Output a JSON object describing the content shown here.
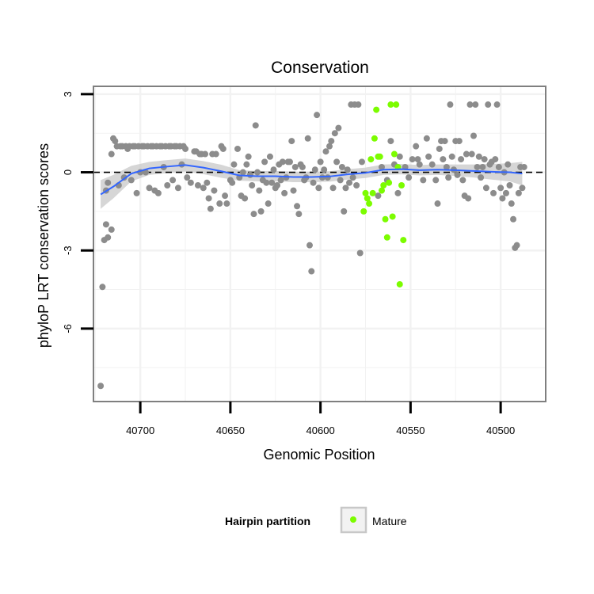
{
  "chart_data": {
    "type": "scatter",
    "title": "Conservation",
    "xlabel": "Genomic Position",
    "ylabel": "phyloP LRT conservation scores",
    "x_reversed": true,
    "xlim": [
      40726,
      40475
    ],
    "ylim": [
      -8.8,
      3.3
    ],
    "x_ticks": [
      40700,
      40650,
      40600,
      40550,
      40500
    ],
    "y_ticks": [
      3,
      0,
      -3,
      -6
    ],
    "reference_line": {
      "y": 0,
      "style": "dashed"
    },
    "grid": true,
    "legend": {
      "title": "Hairpin partition",
      "entries": [
        "Mature"
      ],
      "placement": "bottom"
    },
    "colors": {
      "other": "#8c8c8c",
      "mature": "#7cfc00",
      "smooth": "#3366ff",
      "band": "#c8c8c8",
      "panel_border": "#7f7f7f",
      "grid": "#f2f2f2"
    },
    "series": [
      {
        "name": "",
        "color": "#8c8c8c",
        "points": [
          [
            40722,
            -8.2
          ],
          [
            40721,
            -4.4
          ],
          [
            40720,
            -2.6
          ],
          [
            40719,
            -2.0
          ],
          [
            40718,
            -2.5
          ],
          [
            40716,
            -2.2
          ],
          [
            40719,
            -0.7
          ],
          [
            40718,
            -0.4
          ],
          [
            40716,
            0.7
          ],
          [
            40715,
            1.3
          ],
          [
            40714,
            1.2
          ],
          [
            40713,
            1.0
          ],
          [
            40712,
            -0.5
          ],
          [
            40711,
            1.0
          ],
          [
            40710,
            1.0
          ],
          [
            40709,
            -0.2
          ],
          [
            40708,
            1.0
          ],
          [
            40707,
            0.9
          ],
          [
            40706,
            1.0
          ],
          [
            40705,
            -0.3
          ],
          [
            40704,
            1.0
          ],
          [
            40703,
            1.0
          ],
          [
            40702,
            -0.8
          ],
          [
            40701,
            1.0
          ],
          [
            40700,
            0.0
          ],
          [
            40699,
            1.0
          ],
          [
            40698,
            1.0
          ],
          [
            40697,
            0.0
          ],
          [
            40696,
            1.0
          ],
          [
            40695,
            -0.6
          ],
          [
            40694,
            1.0
          ],
          [
            40693,
            1.0
          ],
          [
            40692,
            -0.7
          ],
          [
            40691,
            1.0
          ],
          [
            40690,
            -0.8
          ],
          [
            40689,
            1.0
          ],
          [
            40688,
            1.0
          ],
          [
            40687,
            0.2
          ],
          [
            40686,
            1.0
          ],
          [
            40685,
            -0.5
          ],
          [
            40684,
            1.0
          ],
          [
            40683,
            1.0
          ],
          [
            40682,
            -0.3
          ],
          [
            40681,
            1.0
          ],
          [
            40680,
            1.0
          ],
          [
            40679,
            -0.6
          ],
          [
            40678,
            1.0
          ],
          [
            40677,
            0.3
          ],
          [
            40676,
            1.0
          ],
          [
            40675,
            0.9
          ],
          [
            40674,
            -0.2
          ],
          [
            40672,
            -0.4
          ],
          [
            40670,
            0.8
          ],
          [
            40669,
            0.8
          ],
          [
            40668,
            -0.5
          ],
          [
            40667,
            0.7
          ],
          [
            40666,
            0.7
          ],
          [
            40665,
            -0.6
          ],
          [
            40664,
            0.7
          ],
          [
            40663,
            -0.4
          ],
          [
            40662,
            -1.0
          ],
          [
            40661,
            -1.4
          ],
          [
            40660,
            0.7
          ],
          [
            40659,
            -0.7
          ],
          [
            40658,
            0.7
          ],
          [
            40656,
            -1.2
          ],
          [
            40655,
            1.0
          ],
          [
            40654,
            0.9
          ],
          [
            40653,
            -0.9
          ],
          [
            40652,
            -1.2
          ],
          [
            40650,
            -0.3
          ],
          [
            40649,
            -0.4
          ],
          [
            40648,
            0.3
          ],
          [
            40646,
            0.9
          ],
          [
            40645,
            -0.2
          ],
          [
            40644,
            -0.9
          ],
          [
            40643,
            0.0
          ],
          [
            40642,
            -1.0
          ],
          [
            40641,
            0.3
          ],
          [
            40640,
            0.6
          ],
          [
            40639,
            -0.1
          ],
          [
            40638,
            -0.5
          ],
          [
            40637,
            -1.6
          ],
          [
            40636,
            1.8
          ],
          [
            40635,
            0.0
          ],
          [
            40634,
            -0.7
          ],
          [
            40633,
            -1.5
          ],
          [
            40632,
            -0.3
          ],
          [
            40631,
            0.4
          ],
          [
            40630,
            -0.4
          ],
          [
            40629,
            -1.2
          ],
          [
            40628,
            0.6
          ],
          [
            40627,
            -0.4
          ],
          [
            40626,
            0.1
          ],
          [
            40625,
            -0.6
          ],
          [
            40624,
            -0.5
          ],
          [
            40623,
            0.3
          ],
          [
            40622,
            -0.3
          ],
          [
            40621,
            0.4
          ],
          [
            40620,
            -0.8
          ],
          [
            40619,
            -0.2
          ],
          [
            40618,
            0.4
          ],
          [
            40617,
            0.4
          ],
          [
            40616,
            1.2
          ],
          [
            40615,
            -0.7
          ],
          [
            40614,
            0.2
          ],
          [
            40613,
            -1.3
          ],
          [
            40612,
            -1.6
          ],
          [
            40611,
            0.3
          ],
          [
            40610,
            0.2
          ],
          [
            40609,
            -0.3
          ],
          [
            40608,
            -0.2
          ],
          [
            40607,
            1.3
          ],
          [
            40606,
            -2.8
          ],
          [
            40605,
            -3.8
          ],
          [
            40604,
            -0.4
          ],
          [
            40603,
            0.1
          ],
          [
            40602,
            2.2
          ],
          [
            40601,
            -0.6
          ],
          [
            40600,
            0.4
          ],
          [
            40599,
            -0.2
          ],
          [
            40598,
            0.1
          ],
          [
            40597,
            0.8
          ],
          [
            40596,
            -0.2
          ],
          [
            40595,
            1.0
          ],
          [
            40594,
            1.2
          ],
          [
            40593,
            -0.6
          ],
          [
            40592,
            1.5
          ],
          [
            40591,
            0.4
          ],
          [
            40590,
            1.7
          ],
          [
            40589,
            -0.3
          ],
          [
            40588,
            0.2
          ],
          [
            40587,
            -1.5
          ],
          [
            40586,
            -0.6
          ],
          [
            40585,
            0.1
          ],
          [
            40584,
            -0.4
          ],
          [
            40583,
            2.6
          ],
          [
            40582,
            -0.2
          ],
          [
            40581,
            2.6
          ],
          [
            40580,
            -0.5
          ],
          [
            40579,
            2.6
          ],
          [
            40578,
            -3.1
          ],
          [
            40577,
            0.4
          ],
          [
            40568,
            -0.9
          ],
          [
            40566,
            0.2
          ],
          [
            40563,
            -0.3
          ],
          [
            40561,
            1.2
          ],
          [
            40559,
            0.3
          ],
          [
            40557,
            -0.8
          ],
          [
            40556,
            0.6
          ],
          [
            40553,
            0.2
          ],
          [
            40551,
            -0.2
          ],
          [
            40549,
            0.5
          ],
          [
            40547,
            1.0
          ],
          [
            40546,
            0.5
          ],
          [
            40545,
            0.3
          ],
          [
            40543,
            -0.3
          ],
          [
            40541,
            1.3
          ],
          [
            40540,
            0.6
          ],
          [
            40538,
            0.3
          ],
          [
            40536,
            -0.3
          ],
          [
            40535,
            -1.2
          ],
          [
            40534,
            0.9
          ],
          [
            40533,
            1.2
          ],
          [
            40532,
            0.5
          ],
          [
            40531,
            1.2
          ],
          [
            40530,
            0.2
          ],
          [
            40529,
            -0.2
          ],
          [
            40528,
            2.6
          ],
          [
            40527,
            0.6
          ],
          [
            40526,
            0.1
          ],
          [
            40525,
            1.2
          ],
          [
            40524,
            -0.1
          ],
          [
            40523,
            1.2
          ],
          [
            40522,
            0.5
          ],
          [
            40521,
            -0.3
          ],
          [
            40520,
            -0.9
          ],
          [
            40519,
            0.7
          ],
          [
            40518,
            -1.0
          ],
          [
            40517,
            2.6
          ],
          [
            40516,
            0.7
          ],
          [
            40515,
            1.4
          ],
          [
            40514,
            2.6
          ],
          [
            40513,
            0.2
          ],
          [
            40512,
            0.6
          ],
          [
            40511,
            -0.2
          ],
          [
            40510,
            0.2
          ],
          [
            40509,
            0.5
          ],
          [
            40508,
            -0.6
          ],
          [
            40507,
            2.6
          ],
          [
            40506,
            0.3
          ],
          [
            40505,
            0.4
          ],
          [
            40504,
            -0.8
          ],
          [
            40503,
            0.5
          ],
          [
            40502,
            2.6
          ],
          [
            40501,
            0.2
          ],
          [
            40500,
            -0.6
          ],
          [
            40499,
            -1.0
          ],
          [
            40498,
            0.0
          ],
          [
            40497,
            -0.8
          ],
          [
            40496,
            0.3
          ],
          [
            40495,
            -0.5
          ],
          [
            40494,
            -1.2
          ],
          [
            40493,
            -1.8
          ],
          [
            40492,
            -2.9
          ],
          [
            40491,
            -2.8
          ],
          [
            40490,
            -0.8
          ],
          [
            40489,
            0.2
          ],
          [
            40488,
            -0.6
          ],
          [
            40487,
            0.2
          ]
        ]
      },
      {
        "name": "Mature",
        "color": "#7cfc00",
        "points": [
          [
            40576,
            -1.5
          ],
          [
            40575,
            -0.8
          ],
          [
            40574,
            -1.0
          ],
          [
            40573,
            -1.2
          ],
          [
            40572,
            0.5
          ],
          [
            40571,
            -0.8
          ],
          [
            40570,
            1.3
          ],
          [
            40569,
            2.4
          ],
          [
            40568,
            0.6
          ],
          [
            40567,
            0.6
          ],
          [
            40566,
            -0.7
          ],
          [
            40565,
            -0.5
          ],
          [
            40564,
            -1.8
          ],
          [
            40563,
            -2.5
          ],
          [
            40562,
            -0.4
          ],
          [
            40561,
            2.6
          ],
          [
            40560,
            -1.7
          ],
          [
            40559,
            0.7
          ],
          [
            40558,
            2.6
          ],
          [
            40557,
            0.2
          ],
          [
            40556,
            -4.3
          ],
          [
            40555,
            -0.5
          ],
          [
            40554,
            -2.6
          ]
        ]
      }
    ],
    "smooth": [
      [
        40722,
        -0.85
      ],
      [
        40715,
        -0.55
      ],
      [
        40705,
        -0.05
      ],
      [
        40695,
        0.15
      ],
      [
        40685,
        0.22
      ],
      [
        40675,
        0.28
      ],
      [
        40665,
        0.18
      ],
      [
        40655,
        0.04
      ],
      [
        40645,
        -0.12
      ],
      [
        40635,
        -0.15
      ],
      [
        40625,
        -0.15
      ],
      [
        40615,
        -0.18
      ],
      [
        40605,
        -0.18
      ],
      [
        40595,
        -0.16
      ],
      [
        40585,
        -0.08
      ],
      [
        40575,
        -0.02
      ],
      [
        40565,
        0.1
      ],
      [
        40555,
        0.12
      ],
      [
        40545,
        0.08
      ],
      [
        40535,
        0.1
      ],
      [
        40525,
        0.08
      ],
      [
        40515,
        0.05
      ],
      [
        40505,
        0.02
      ],
      [
        40495,
        0.0
      ],
      [
        40488,
        -0.05
      ]
    ],
    "smooth_band_halfwidth": [
      0.55,
      0.45,
      0.3,
      0.25,
      0.25,
      0.25,
      0.25,
      0.25,
      0.2,
      0.2,
      0.2,
      0.2,
      0.2,
      0.2,
      0.2,
      0.2,
      0.2,
      0.2,
      0.2,
      0.2,
      0.22,
      0.25,
      0.3,
      0.35,
      0.45
    ]
  }
}
